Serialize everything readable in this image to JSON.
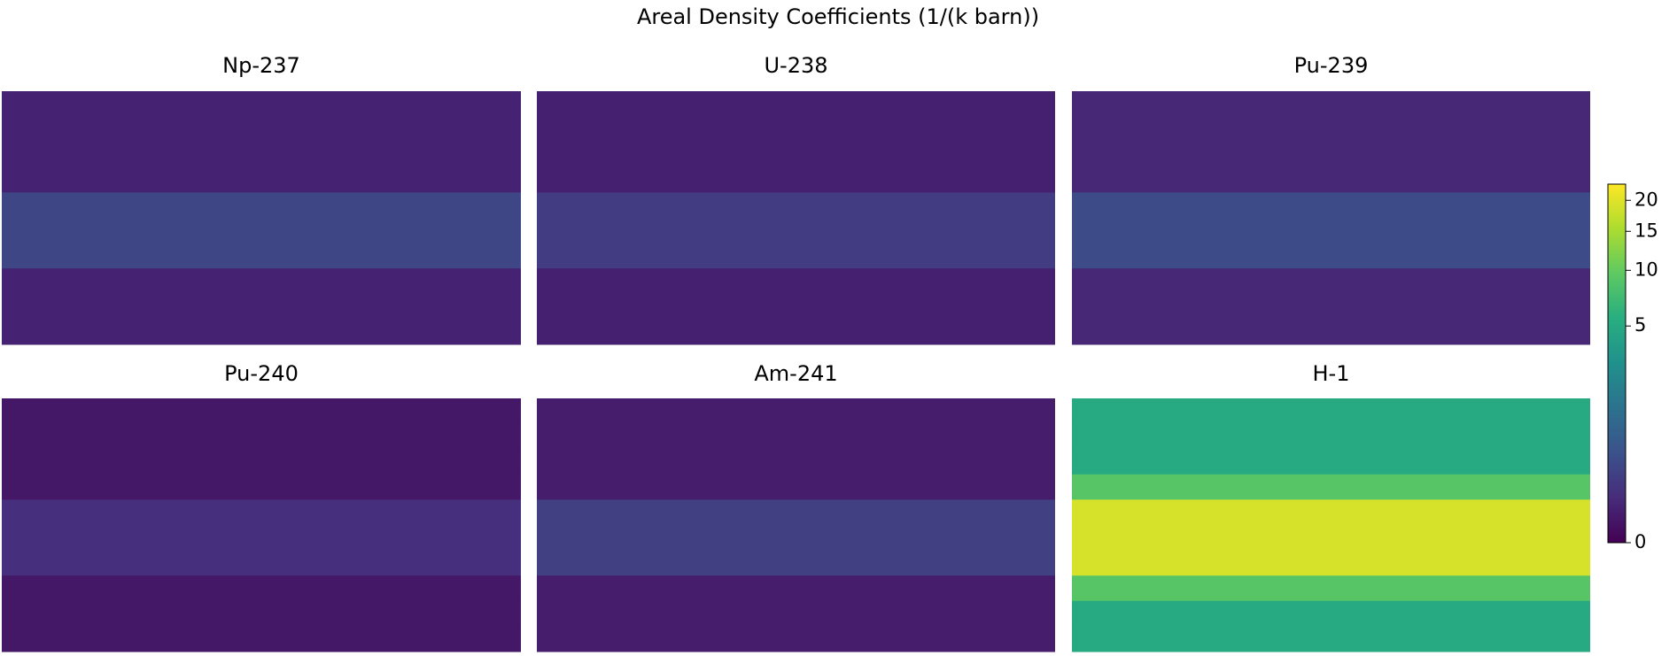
{
  "chart_data": {
    "type": "heatmap",
    "title": "Areal Density Coefficients (1/(k barn))",
    "colormap": "viridis",
    "clim": [
      0,
      23
    ],
    "norm_gamma": 0.33,
    "cticks": [
      0,
      5,
      10,
      15,
      20
    ],
    "panels": [
      {
        "title": "Np-237",
        "rows": [
          0.02,
          0.02,
          0.02,
          0.02,
          0.2,
          0.2,
          0.2,
          0.02,
          0.02,
          0.02
        ]
      },
      {
        "title": "U-238",
        "rows": [
          0.015,
          0.015,
          0.015,
          0.015,
          0.12,
          0.12,
          0.12,
          0.015,
          0.015,
          0.015
        ]
      },
      {
        "title": "Pu-239",
        "rows": [
          0.03,
          0.03,
          0.03,
          0.03,
          0.25,
          0.25,
          0.25,
          0.03,
          0.03,
          0.03
        ]
      },
      {
        "title": "Pu-240",
        "rows": [
          0.005,
          0.005,
          0.005,
          0.005,
          0.05,
          0.05,
          0.05,
          0.005,
          0.005,
          0.005
        ]
      },
      {
        "title": "Am-241",
        "rows": [
          0.01,
          0.01,
          0.01,
          0.01,
          0.15,
          0.15,
          0.15,
          0.01,
          0.01,
          0.01
        ]
      },
      {
        "title": "H-1",
        "rows": [
          5,
          5,
          5,
          9,
          19,
          19,
          19,
          9,
          5,
          5
        ]
      }
    ]
  }
}
